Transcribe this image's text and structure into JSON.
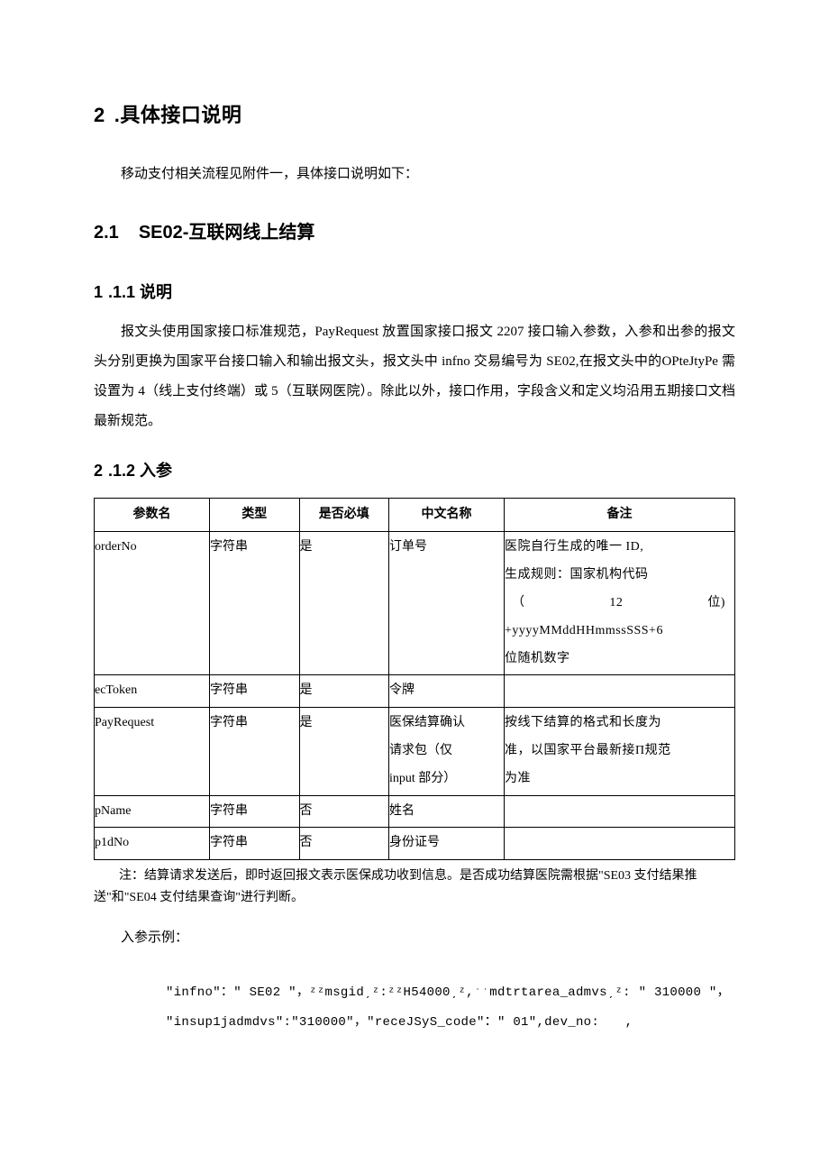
{
  "h1_num": "2",
  "h1_text": ".具体接口说明",
  "intro": "移动支付相关流程见附件一，具体接口说明如下：",
  "h2_num": "2.1",
  "h2_text": "SE02-互联网线上结算",
  "s1_num": "1",
  "s1_text": ".1.1 说明",
  "s1_para": "报文头使用国家接口标准规范，PayRequest 放置国家接口报文 2207 接口输入参数，入参和出参的报文头分别更换为国家平台接口输入和输出报文头，报文头中 infno 交易编号为 SE02,在报文头中的OPteJtyPe 需设置为 4（线上支付终端）或 5（互联网医院）。除此以外，接口作用，字段含义和定义均沿用五期接口文档最新规范。",
  "s2_num": "2",
  "s2_text": ".1.2 入参",
  "table": {
    "headers": [
      "参数名",
      "类型",
      "是否必填",
      "中文名称",
      "备注"
    ],
    "col_widths": [
      "18%",
      "14%",
      "14%",
      "18%",
      "36%"
    ],
    "rows": [
      {
        "name": "orderNo",
        "type": "字符串",
        "required": "是",
        "cn": "订单号",
        "remark_l1": "医院自行生成的唯一 ID,",
        "remark_l2": "生成规则：国家机构代码",
        "remark_l3a": "（",
        "remark_l3b": "12",
        "remark_l3c": "位)",
        "remark_l4": "+yyyyMMddHHmmssSSS+6",
        "remark_l5": "位随机数字"
      },
      {
        "name": "ecToken",
        "type": "字符串",
        "required": "是",
        "cn": "令牌",
        "remark": ""
      },
      {
        "name": "PayRequest",
        "type": "字符串",
        "required": "是",
        "cn_l1": "医保结算确认",
        "cn_l2": "请求包（仅",
        "cn_l3": "input 部分）",
        "remark_l1": "按线下结算的格式和长度为",
        "remark_l2": "准，以国家平台最新接Π规范",
        "remark_l3": "为准"
      },
      {
        "name": "pName",
        "type": "字符串",
        "required": "否",
        "cn": "姓名",
        "remark": ""
      },
      {
        "name": "p1dNo",
        "type": "字符串",
        "required": "否",
        "cn": "身份证号",
        "remark": ""
      }
    ]
  },
  "note": "注：结算请求发送后，即时返回报文表示医保成功收到信息。是否成功结算医院需根据\"SE03 支付结果推送\"和\"SE04 支付结果查询\"进行判断。",
  "example_label": "入参示例：",
  "code_l1": "\"infno\"：″ SE02 ″，ᶻᶻmsgidˏᶻ:ᶻᶻH54000ˏᶻ,ˑˑmdtrtarea_admvsˏᶻ: ″ 310000 ″，",
  "code_l2": "\"insup1jadmdvs\":″310000″，\"receJSyS_code\"：″ 01″,dev_no:　　,"
}
